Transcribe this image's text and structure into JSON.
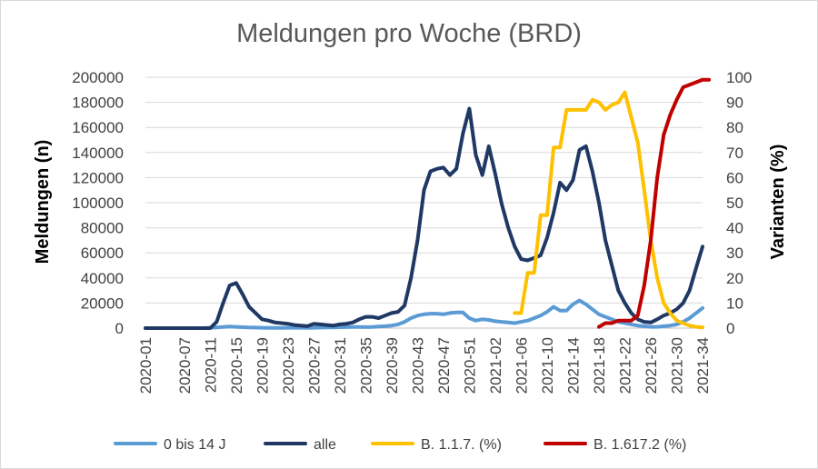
{
  "chart_data": {
    "type": "line",
    "title": "Meldungen pro Woche (BRD)",
    "ylabel": "Meldungen (n)",
    "y2label": "Varianten (%)",
    "ylim": [
      0,
      200000
    ],
    "y2lim": [
      0,
      100
    ],
    "yticks": [
      "0",
      "20000",
      "40000",
      "60000",
      "80000",
      "100000",
      "120000",
      "140000",
      "160000",
      "180000",
      "200000"
    ],
    "y2ticks": [
      "0",
      "10",
      "20",
      "30",
      "40",
      "50",
      "60",
      "70",
      "80",
      "90",
      "100"
    ],
    "xtick_labels": [
      "2020-01",
      "2020-07",
      "2020-11",
      "2020-15",
      "2020-19",
      "2020-23",
      "2020-27",
      "2020-31",
      "2020-35",
      "2020-39",
      "2020-43",
      "2020-47",
      "2020-51",
      "2021-02",
      "2021-06",
      "2021-10",
      "2021-14",
      "2021-18",
      "2021-22",
      "2021-26",
      "2021-30",
      "2021-34"
    ],
    "xtick_index": [
      0,
      6,
      10,
      14,
      18,
      22,
      26,
      30,
      34,
      38,
      42,
      46,
      50,
      54,
      58,
      62,
      66,
      70,
      74,
      78,
      82,
      86
    ],
    "legend_position": "bottom",
    "series": [
      {
        "name": "0 bis 14 J",
        "axis": "left",
        "color": "#5b9bd5",
        "start": 0,
        "values": [
          0,
          0,
          0,
          0,
          0,
          0,
          0,
          0,
          0,
          0,
          300,
          600,
          900,
          1200,
          1000,
          700,
          500,
          400,
          300,
          250,
          200,
          200,
          300,
          350,
          300,
          250,
          300,
          400,
          500,
          600,
          700,
          800,
          900,
          900,
          800,
          900,
          1200,
          1500,
          2000,
          3000,
          5000,
          8000,
          10000,
          11000,
          11500,
          11500,
          11000,
          12000,
          12500,
          12500,
          8000,
          6000,
          7000,
          6500,
          5500,
          5000,
          4500,
          4000,
          5000,
          6000,
          8000,
          10000,
          13000,
          17000,
          14000,
          14000,
          19000,
          22000,
          19000,
          15000,
          11000,
          9000,
          7000,
          5000,
          4000,
          3000,
          2000,
          1500,
          1000,
          1000,
          1500,
          2000,
          3000,
          5000,
          8000,
          12000,
          16000
        ]
      },
      {
        "name": "alle",
        "axis": "left",
        "color": "#1f3864",
        "start": 0,
        "values": [
          0,
          0,
          0,
          0,
          0,
          0,
          0,
          0,
          0,
          0,
          0,
          5000,
          20000,
          34000,
          36000,
          27000,
          17000,
          12000,
          7000,
          6000,
          4500,
          4000,
          3500,
          2500,
          2000,
          1500,
          3500,
          3000,
          2500,
          2000,
          3000,
          3500,
          4500,
          7000,
          9000,
          9000,
          8000,
          10000,
          12000,
          13000,
          18000,
          40000,
          70000,
          110000,
          125000,
          127000,
          128000,
          122000,
          127000,
          155000,
          175000,
          138000,
          122000,
          145000,
          123000,
          99000,
          80000,
          65000,
          55000,
          54000,
          56000,
          58000,
          72000,
          92000,
          116000,
          110000,
          118000,
          142000,
          145000,
          125000,
          100000,
          70000,
          50000,
          30000,
          20000,
          12000,
          7000,
          5000,
          4500,
          7000,
          10000,
          12000,
          15000,
          20000,
          30000,
          48000,
          65000
        ]
      },
      {
        "name": "B. 1.1.7. (%)",
        "axis": "right",
        "color": "#ffc000",
        "start": 57,
        "values": [
          6,
          6,
          22,
          22,
          45,
          45,
          72,
          72,
          87,
          87,
          87,
          87,
          91,
          90,
          87,
          89,
          90,
          94,
          84,
          74,
          55,
          35,
          20,
          10,
          6,
          3,
          2,
          1,
          0.5,
          0.3
        ]
      },
      {
        "name": "B. 1.617.2 (%)",
        "axis": "right",
        "color": "#c00000",
        "start": 70,
        "values": [
          0.5,
          2,
          2,
          3,
          3,
          3,
          5,
          17,
          35,
          60,
          77,
          85,
          91,
          96,
          97,
          98,
          99,
          99
        ]
      }
    ]
  }
}
